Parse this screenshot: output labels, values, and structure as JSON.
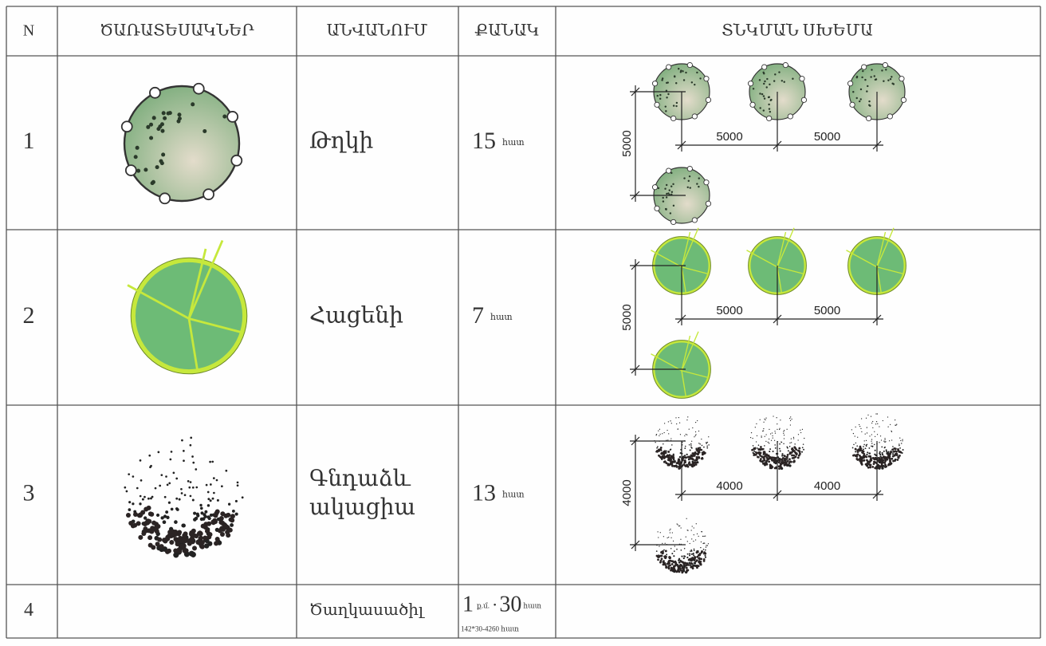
{
  "table": {
    "header": [
      "N",
      "ԾԱՌԱՏԵՍԱԿՆԵՐ",
      "ԱՆՎԱՆՈՒՄ",
      "ՔԱՆԱԿ",
      "ՏՆԿՄԱՆ ՍԽԵՄԱ"
    ],
    "rows": [
      {
        "n": "1",
        "name": [
          "Թղկի"
        ],
        "quantity": "15",
        "unit": "հատ",
        "scheme": {
          "vertical": "5000",
          "horizontal": [
            "5000",
            "5000"
          ]
        }
      },
      {
        "n": "2",
        "name": [
          "Հացենի"
        ],
        "quantity": "7",
        "unit": "հատ",
        "scheme": {
          "vertical": "5000",
          "horizontal": [
            "5000",
            "5000"
          ]
        }
      },
      {
        "n": "3",
        "name": [
          "Գնդաձև",
          "ակացիա"
        ],
        "quantity": "13",
        "unit": "հատ",
        "scheme": {
          "vertical": "4000",
          "horizontal": [
            "4000",
            "4000"
          ]
        }
      },
      {
        "n": "4",
        "name": [
          "Ծաղկասածիլ"
        ],
        "quantity": "1",
        "unit": "ք.մ.",
        "separator": "·",
        "multiplier": "30",
        "unit2": "հատ",
        "note": "142*30-4260 հատ"
      }
    ]
  }
}
